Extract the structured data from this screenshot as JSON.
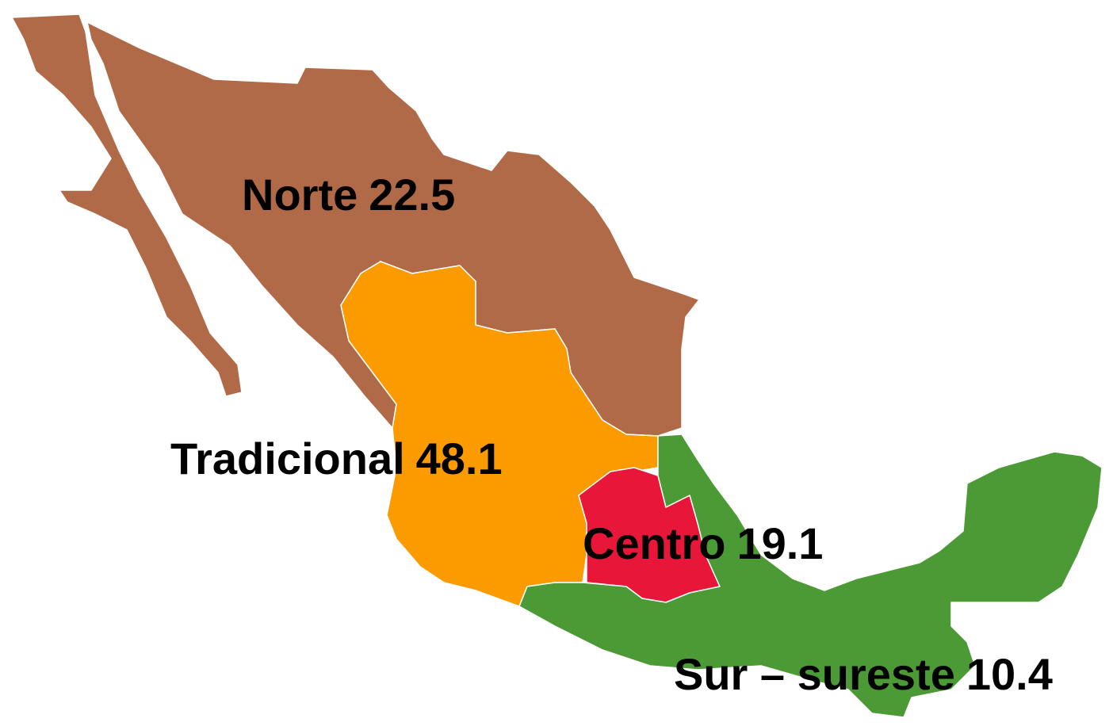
{
  "map": {
    "regions": [
      {
        "name": "Norte",
        "value": 22.5,
        "color": "#b06a47"
      },
      {
        "name": "Tradicional",
        "value": 48.1,
        "color": "#fb9b00"
      },
      {
        "name": "Centro",
        "value": 19.1,
        "color": "#e8173a"
      },
      {
        "name": "Sur – sureste",
        "value": 10.4,
        "color": "#4b9a35"
      }
    ]
  }
}
